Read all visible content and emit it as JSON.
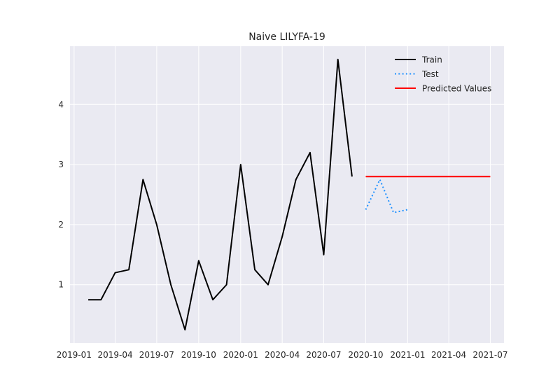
{
  "chart_data": {
    "type": "line",
    "title": "Naive LILYFA-19",
    "xlabel": "",
    "ylabel": "",
    "x_ticks": [
      "2019-01",
      "2019-04",
      "2019-07",
      "2019-10",
      "2020-01",
      "2020-04",
      "2020-07",
      "2020-10",
      "2021-01",
      "2021-04",
      "2021-07"
    ],
    "y_ticks": [
      "1",
      "2",
      "3",
      "4"
    ],
    "xlim": [
      "2018-12-23",
      "2021-07-31"
    ],
    "ylim": [
      0.03,
      4.97
    ],
    "grid": true,
    "legend_position": "upper-right",
    "series": [
      {
        "name": "Train",
        "color": "#000000",
        "style": "solid",
        "x": [
          "2019-02-01",
          "2019-03-01",
          "2019-04-01",
          "2019-05-01",
          "2019-06-01",
          "2019-07-01",
          "2019-08-01",
          "2019-09-01",
          "2019-10-01",
          "2019-11-01",
          "2019-12-01",
          "2020-01-01",
          "2020-02-01",
          "2020-03-01",
          "2020-04-01",
          "2020-05-01",
          "2020-06-01",
          "2020-07-01",
          "2020-08-01",
          "2020-09-01"
        ],
        "values": [
          0.75,
          0.75,
          1.2,
          1.25,
          2.75,
          2.0,
          1.0,
          0.25,
          1.4,
          0.75,
          1.0,
          3.0,
          1.25,
          1.0,
          1.8,
          2.75,
          3.2,
          1.5,
          4.75,
          2.8
        ]
      },
      {
        "name": "Test",
        "color": "#1e90ff",
        "style": "dotted",
        "x": [
          "2020-10-01",
          "2020-11-01",
          "2020-12-01",
          "2021-01-01"
        ],
        "values": [
          2.25,
          2.75,
          2.2,
          2.25
        ]
      },
      {
        "name": "Predicted Values",
        "color": "#ff0000",
        "style": "solid",
        "x": [
          "2020-10-01",
          "2020-11-01",
          "2020-12-01",
          "2021-01-01",
          "2021-02-01",
          "2021-03-01",
          "2021-04-01",
          "2021-05-01",
          "2021-06-01",
          "2021-07-01"
        ],
        "values": [
          2.8,
          2.8,
          2.8,
          2.8,
          2.8,
          2.8,
          2.8,
          2.8,
          2.8,
          2.8
        ]
      }
    ]
  }
}
